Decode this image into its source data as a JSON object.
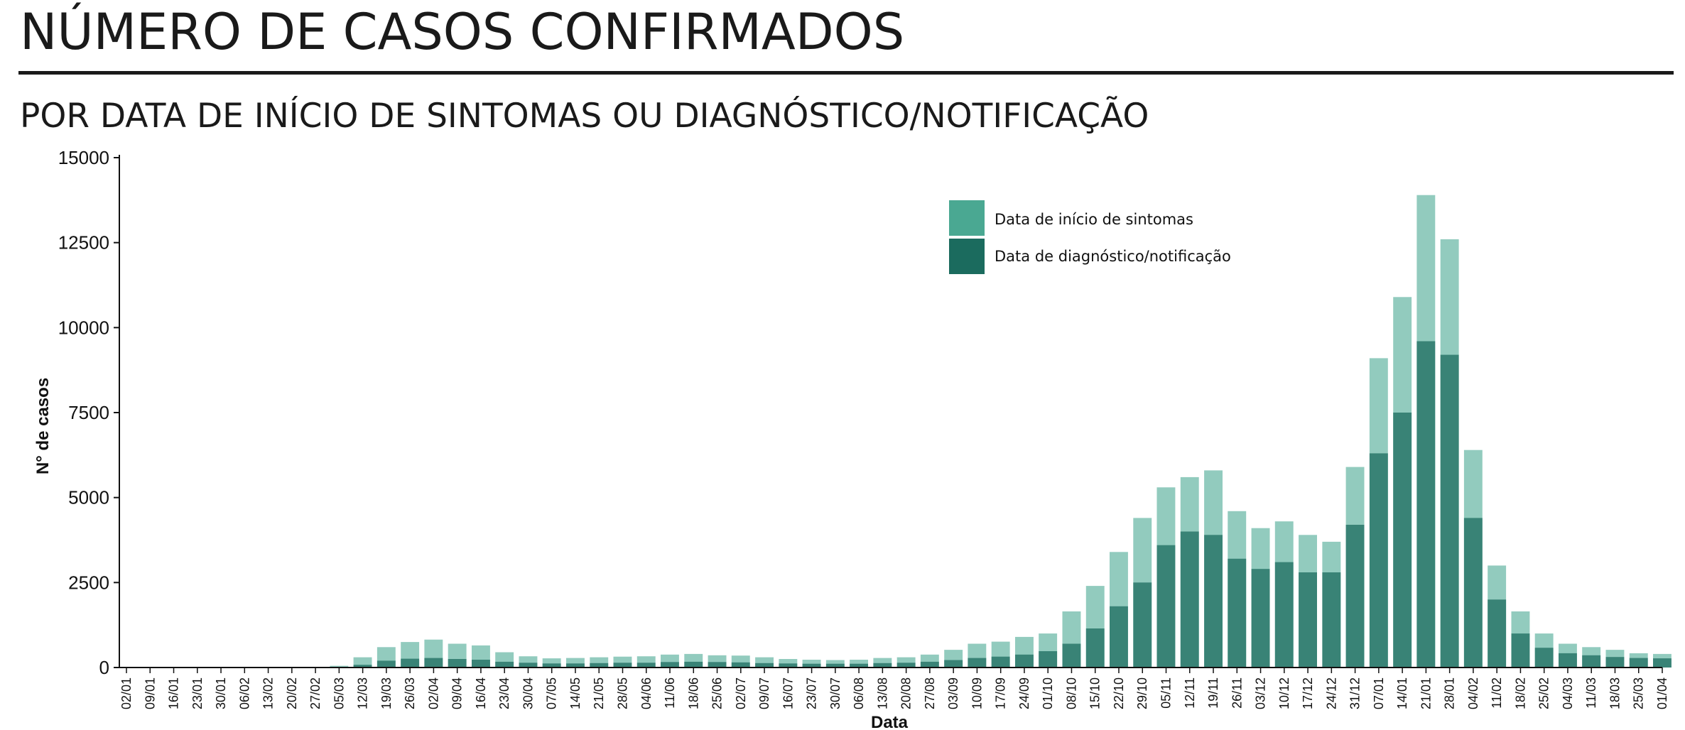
{
  "header": {
    "title": "NÚMERO DE CASOS CONFIRMADOS",
    "subtitle": "POR DATA DE INÍCIO DE SINTOMAS OU DIAGNÓSTICO/NOTIFICAÇÃO"
  },
  "colors": {
    "symptoms": "#4aa892",
    "diagnosis": "#1b6b5e",
    "axis": "#111111"
  },
  "chart_data": {
    "type": "bar",
    "title": "",
    "xlabel": "Data",
    "ylabel": "N° de casos",
    "ylim": [
      0,
      15000
    ],
    "yticks": [
      0,
      2500,
      5000,
      7500,
      10000,
      12500,
      15000
    ],
    "x_start": "02/01",
    "x_end": "01/04",
    "categories": [
      "02/01",
      "09/01",
      "16/01",
      "23/01",
      "30/01",
      "06/02",
      "13/02",
      "20/02",
      "27/02",
      "05/03",
      "12/03",
      "19/03",
      "26/03",
      "02/04",
      "09/04",
      "16/04",
      "23/04",
      "30/04",
      "07/05",
      "14/05",
      "21/05",
      "28/05",
      "04/06",
      "11/06",
      "18/06",
      "25/06",
      "02/07",
      "09/07",
      "16/07",
      "23/07",
      "30/07",
      "06/08",
      "13/08",
      "20/08",
      "27/08",
      "03/09",
      "10/09",
      "17/09",
      "24/09",
      "01/10",
      "08/10",
      "15/10",
      "22/10",
      "29/10",
      "05/11",
      "12/11",
      "19/11",
      "26/11",
      "03/12",
      "10/12",
      "17/12",
      "24/12",
      "31/12",
      "07/01",
      "14/01",
      "21/01",
      "28/01",
      "04/02",
      "11/02",
      "18/02",
      "25/02",
      "04/03",
      "11/03",
      "18/03",
      "25/03",
      "01/04"
    ],
    "series": [
      {
        "name": "Data de início de sintomas",
        "color": "#4aa892",
        "values": [
          0,
          0,
          0,
          0,
          0,
          0,
          0,
          0,
          0,
          50,
          300,
          600,
          750,
          820,
          700,
          650,
          450,
          330,
          270,
          280,
          300,
          320,
          330,
          380,
          400,
          360,
          350,
          300,
          250,
          230,
          220,
          230,
          280,
          300,
          380,
          520,
          700,
          760,
          900,
          1000,
          1650,
          2400,
          3400,
          4400,
          5300,
          5600,
          5800,
          4600,
          4100,
          4300,
          3900,
          3700,
          5900,
          9100,
          10900,
          13900,
          12600,
          6400,
          3000,
          1650,
          1000,
          700,
          600,
          520,
          420,
          400
        ]
      },
      {
        "name": "Data de diagnóstico/notificação",
        "color": "#1b6b5e",
        "values": [
          0,
          0,
          0,
          0,
          0,
          0,
          0,
          0,
          0,
          10,
          80,
          200,
          260,
          280,
          250,
          230,
          170,
          140,
          120,
          120,
          130,
          140,
          140,
          160,
          170,
          160,
          150,
          130,
          120,
          110,
          110,
          110,
          130,
          140,
          170,
          220,
          280,
          320,
          380,
          480,
          700,
          1150,
          1800,
          2500,
          3600,
          4000,
          3900,
          3200,
          2900,
          3100,
          2800,
          2800,
          4200,
          6300,
          7500,
          9600,
          9200,
          4400,
          2000,
          1000,
          580,
          420,
          360,
          310,
          280,
          270
        ]
      }
    ],
    "legend_position": "top-center",
    "grid": false
  }
}
